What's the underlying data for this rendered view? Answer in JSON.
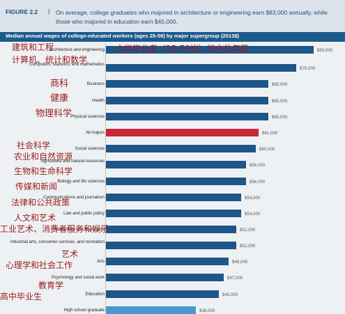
{
  "figure": {
    "label": "FIGURE 2.2",
    "separator": "|",
    "caption": "On average, college graduates who majored in architecture or engineering earn $83,000 annually, while those who majored in education earn $45,000."
  },
  "chart_title": "Median annual wages of college-educated workers (ages 25-59) by major supergroup (2013$)",
  "colors": {
    "bar": "#1e5688",
    "highlight": "#c8283a",
    "secondary": "#4a9ad0",
    "annotation": "#9a1a1a"
  },
  "chart_data": {
    "type": "bar",
    "orientation": "horizontal",
    "title": "Median annual wages of college-educated workers (ages 25-59) by major supergroup (2013$)",
    "categories": [
      "Architecture and engineering",
      "Computers, statistics, and mathematics",
      "Business",
      "Health",
      "Physical sciences",
      "All majors",
      "Social sciences",
      "Agriculture and natural resources",
      "Biology and life sciences",
      "Communications and journalism",
      "Law and public policy",
      "Humanities and liberal arts",
      "Industrial arts, consumer services, and recreation",
      "Arts",
      "Psychology and social work",
      "Education",
      "High school graduate"
    ],
    "values": [
      83000,
      76000,
      65000,
      65000,
      65000,
      61000,
      60000,
      56000,
      56000,
      54000,
      54000,
      52000,
      52000,
      49000,
      47000,
      45000,
      36000
    ],
    "value_labels": [
      "$83,000",
      "$76,000",
      "$65,000",
      "$65,000",
      "$65,000",
      "$61,000",
      "$60,000",
      "$56,000",
      "$56,000",
      "$54,000",
      "$54,000",
      "$52,000",
      "$52,000",
      "$49,000",
      "$47,000",
      "$45,000",
      "$36,000"
    ],
    "highlight_index": 5,
    "secondary_index": 16,
    "xlim": [
      0,
      83000
    ]
  },
  "annotations": [
    "大学毕业者（25-59岁）的中位年薪",
    "建筑和工程",
    "计算机、统计和数学",
    "商科",
    "健康",
    "物理科学",
    "社会科学",
    "农业和自然资源",
    "生物和生命科学",
    "传媒和新闻",
    "法律和公共政策",
    "人文和艺术",
    "工业艺术、消费者服务和娱乐",
    "艺术",
    "心理学和社会工作",
    "教育学",
    "高中毕业生"
  ]
}
